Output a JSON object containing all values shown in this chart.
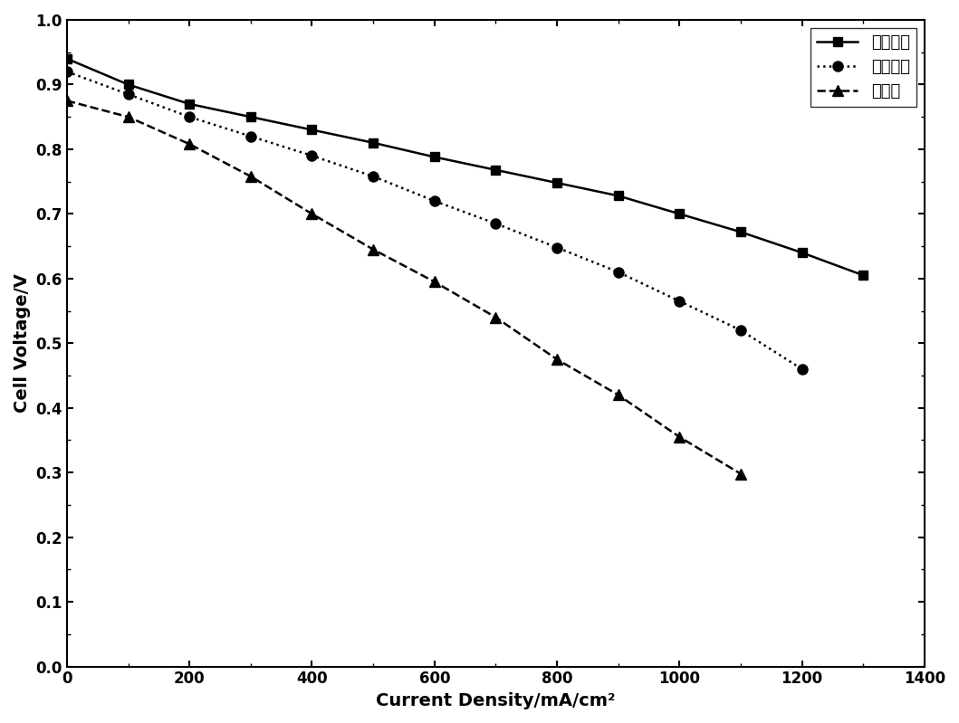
{
  "series": [
    {
      "label": "增湿条件",
      "x": [
        0,
        100,
        200,
        300,
        400,
        500,
        600,
        700,
        800,
        900,
        1000,
        1100,
        1200,
        1300
      ],
      "y": [
        0.94,
        0.9,
        0.87,
        0.85,
        0.83,
        0.81,
        0.788,
        0.768,
        0.748,
        0.728,
        0.7,
        0.672,
        0.64,
        0.605
      ],
      "color": "#000000",
      "linestyle": "-",
      "marker": "s",
      "markersize": 7
    },
    {
      "label": "阳极增湿",
      "x": [
        0,
        100,
        200,
        300,
        400,
        500,
        600,
        700,
        800,
        900,
        1000,
        1100,
        1200
      ],
      "y": [
        0.92,
        0.885,
        0.85,
        0.82,
        0.79,
        0.758,
        0.72,
        0.685,
        0.648,
        0.61,
        0.565,
        0.52,
        0.46
      ],
      "color": "#000000",
      "linestyle": ":",
      "marker": "o",
      "markersize": 8
    },
    {
      "label": "不增湿",
      "x": [
        0,
        100,
        200,
        300,
        400,
        500,
        600,
        700,
        800,
        900,
        1000,
        1100
      ],
      "y": [
        0.875,
        0.85,
        0.808,
        0.758,
        0.7,
        0.645,
        0.595,
        0.54,
        0.475,
        0.42,
        0.355,
        0.298
      ],
      "color": "#000000",
      "linestyle": "--",
      "marker": "^",
      "markersize": 8
    }
  ],
  "xlabel": "Current Density/mA/cm²",
  "ylabel": "Cell Voltage/V",
  "xlim": [
    0,
    1400
  ],
  "ylim": [
    0.0,
    1.0
  ],
  "xticks": [
    0,
    200,
    400,
    600,
    800,
    1000,
    1200,
    1400
  ],
  "yticks": [
    0.0,
    0.1,
    0.2,
    0.3,
    0.4,
    0.5,
    0.6,
    0.7,
    0.8,
    0.9,
    1.0
  ],
  "legend_loc": "upper right",
  "background_color": "#ffffff",
  "legend_labels_cn": [
    "增湿条件",
    "阳极增湿",
    "不增湿"
  ]
}
